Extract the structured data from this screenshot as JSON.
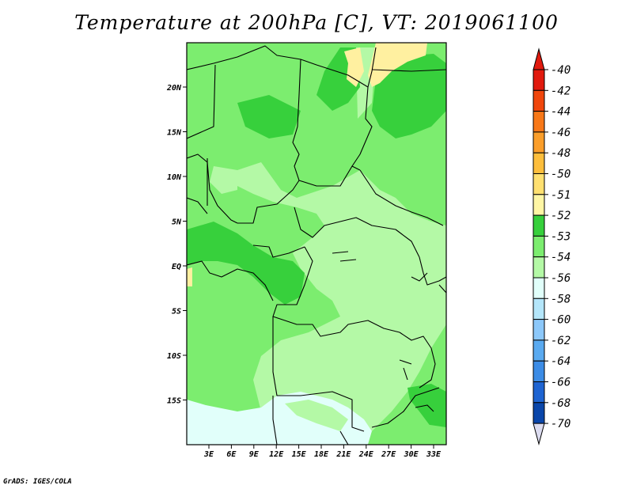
{
  "title": "Temperature at 200hPa [C], VT: 2019061100",
  "credit": "GrADS: IGES/COLA",
  "map": {
    "lon_ticks": [
      "3E",
      "6E",
      "9E",
      "12E",
      "15E",
      "18E",
      "21E",
      "24E",
      "27E",
      "30E",
      "33E"
    ],
    "lat_ticks": [
      "20N",
      "15N",
      "10N",
      "5N",
      "EQ",
      "5S",
      "10S",
      "15S"
    ],
    "field_colors": {
      "dominant": "#7ced6f",
      "lighter": "#b4f9a6",
      "darker": "#37d03c",
      "pale_cyan": "#e1fffa",
      "yellow": "#fff0a0",
      "light_yellow": "#ffe070"
    }
  },
  "colorbar": {
    "labels": [
      "-40",
      "-42",
      "-44",
      "-46",
      "-48",
      "-50",
      "-51",
      "-52",
      "-53",
      "-54",
      "-56",
      "-58",
      "-60",
      "-62",
      "-64",
      "-66",
      "-68",
      "-70"
    ],
    "colors": [
      "#e11a0e",
      "#f0460c",
      "#f87818",
      "#fb9e2a",
      "#fdbe3c",
      "#ffe070",
      "#fff6a4",
      "#37d03c",
      "#7ced6f",
      "#b4f9a6",
      "#e1fffa",
      "#b4e6fa",
      "#8cc8fa",
      "#5aaaf0",
      "#3c8ce6",
      "#1e64d2",
      "#0a46aa",
      "#001e6e"
    ],
    "top_color": "#e11a0e",
    "bottom_color": "#dcdcf0"
  }
}
